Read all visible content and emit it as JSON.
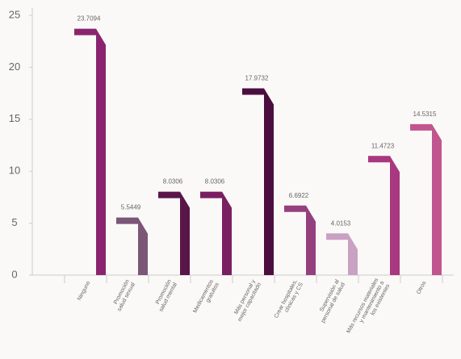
{
  "chart_data": {
    "type": "bar",
    "categories": [
      [
        "Ninguno"
      ],
      [
        "Promoción",
        "salud sexual"
      ],
      [
        "Promoción",
        "salud mental"
      ],
      [
        "Medicamentos",
        "gratuitos"
      ],
      [
        "Más personal y",
        "mejor capacitado"
      ],
      [
        "Crear hospitales,",
        "clínicas y CS"
      ],
      [
        "Supervisión al",
        "personal de salud"
      ],
      [
        "Más recursos materiales",
        "y mantenimiento a",
        "los existentes"
      ],
      [
        "Otros"
      ]
    ],
    "values": [
      23.7094,
      5.5449,
      8.0306,
      8.0306,
      17.9732,
      6.6922,
      4.0153,
      11.4723,
      14.5315
    ],
    "colors": [
      "#8a2470",
      "#7b5676",
      "#5a1549",
      "#7a1f62",
      "#4b0e3f",
      "#94407f",
      "#c9a1c3",
      "#a8387f",
      "#c1558f"
    ],
    "ylim": [
      0,
      25
    ],
    "yticks": [
      0,
      5,
      10,
      15,
      20,
      25
    ]
  }
}
